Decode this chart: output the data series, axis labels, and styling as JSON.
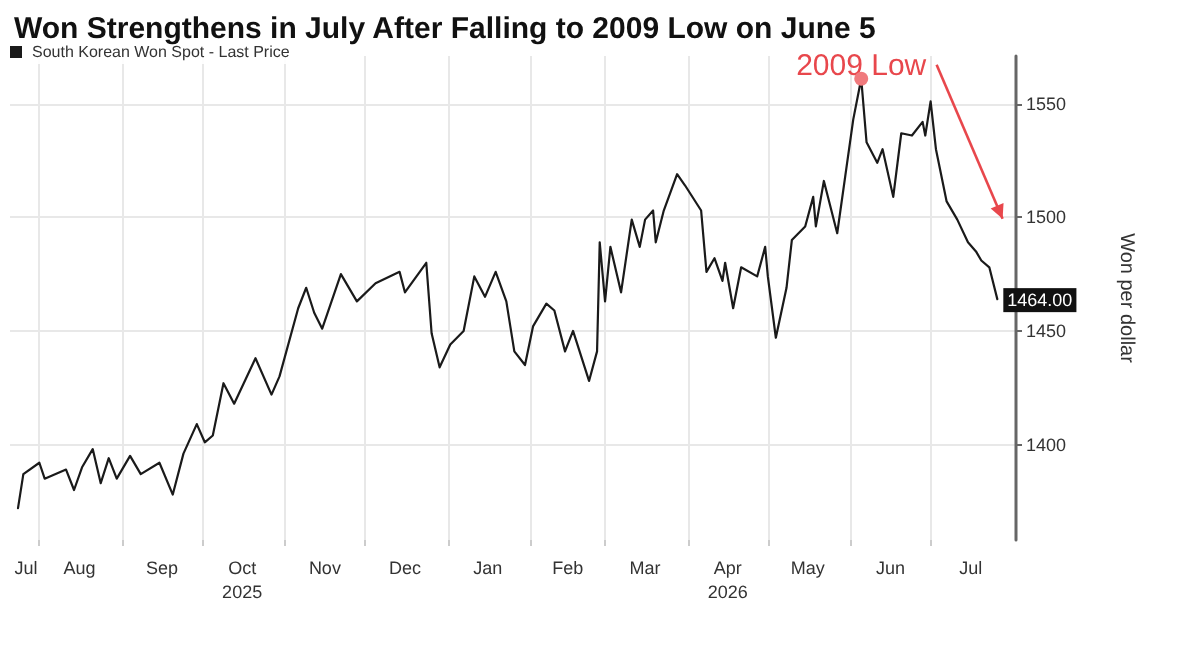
{
  "chart_data": {
    "type": "line",
    "title": "Won Strengthens in July After Falling to 2009 Low on June 5",
    "ylabel": "Won per dollar",
    "legend": "top left",
    "grid": true,
    "marker": "none",
    "line_style": "solid",
    "xlim": [
      "2025-07-21",
      "2026-08-02"
    ],
    "xticks": [
      {
        "value": "2025-07-27",
        "label": "Jul"
      },
      {
        "value": "2025-08-01",
        "label": null
      },
      {
        "value": "2025-08-16",
        "label": "Aug"
      },
      {
        "value": "2025-09-01",
        "label": null
      },
      {
        "value": "2025-09-16",
        "label": "Sep"
      },
      {
        "value": "2025-10-01",
        "label": null
      },
      {
        "value": "2025-10-16",
        "label": "Oct\n2025"
      },
      {
        "value": "2025-11-01",
        "label": null
      },
      {
        "value": "2025-11-16",
        "label": "Nov"
      },
      {
        "value": "2025-12-01",
        "label": null
      },
      {
        "value": "2025-12-16",
        "label": "Dec"
      },
      {
        "value": "2026-01-01",
        "label": null
      },
      {
        "value": "2026-01-16",
        "label": "Jan"
      },
      {
        "value": "2026-02-01",
        "label": null
      },
      {
        "value": "2026-02-15",
        "label": "Feb"
      },
      {
        "value": "2026-03-01",
        "label": null
      },
      {
        "value": "2026-03-16",
        "label": "Mar"
      },
      {
        "value": "2026-04-01",
        "label": null
      },
      {
        "value": "2026-04-16",
        "label": "Apr\n2026"
      },
      {
        "value": "2026-05-01",
        "label": null
      },
      {
        "value": "2026-05-16",
        "label": "May"
      },
      {
        "value": "2026-06-01",
        "label": null
      },
      {
        "value": "2026-06-16",
        "label": "Jun"
      },
      {
        "value": "2026-07-01",
        "label": null
      },
      {
        "value": "2026-07-16",
        "label": "Jul"
      }
    ],
    "ylim": [
      1358,
      1571
    ],
    "yticks": [
      1400,
      1450,
      1500,
      1550
    ],
    "annotations": [
      {
        "text": "2009 Low",
        "x": "2026-06-05",
        "y": 1561
      },
      {
        "text": "1464.00",
        "x": "2026-07-26",
        "y": 1464
      }
    ],
    "x": [
      "2025-07-24",
      "2025-07-26",
      "2025-08-01",
      "2025-08-03",
      "2025-08-11",
      "2025-08-14",
      "2025-08-17",
      "2025-08-21",
      "2025-08-24",
      "2025-08-27",
      "2025-08-30",
      "2025-09-04",
      "2025-09-08",
      "2025-09-15",
      "2025-09-20",
      "2025-09-24",
      "2025-09-29",
      "2025-10-02",
      "2025-10-05",
      "2025-10-09",
      "2025-10-13",
      "2025-10-21",
      "2025-10-27",
      "2025-10-30",
      "2025-11-06",
      "2025-11-09",
      "2025-11-12",
      "2025-11-15",
      "2025-11-22",
      "2025-11-28",
      "2025-12-05",
      "2025-12-14",
      "2025-12-16",
      "2025-12-24",
      "2025-12-26",
      "2025-12-29",
      "2026-01-02",
      "2026-01-07",
      "2026-01-11",
      "2026-01-15",
      "2026-01-19",
      "2026-01-23",
      "2026-01-26",
      "2026-01-30",
      "2026-02-02",
      "2026-02-07",
      "2026-02-10",
      "2026-02-14",
      "2026-02-17",
      "2026-02-23",
      "2026-02-26",
      "2026-02-27",
      "2026-03-01",
      "2026-03-03",
      "2026-03-07",
      "2026-03-11",
      "2026-03-14",
      "2026-03-16",
      "2026-03-19",
      "2026-03-20",
      "2026-03-23",
      "2026-03-28",
      "2026-03-31",
      "2026-04-06",
      "2026-04-08",
      "2026-04-11",
      "2026-04-14",
      "2026-04-15",
      "2026-04-18",
      "2026-04-21",
      "2026-04-27",
      "2026-04-30",
      "2026-05-01",
      "2026-05-04",
      "2026-05-08",
      "2026-05-10",
      "2026-05-15",
      "2026-05-18",
      "2026-05-19",
      "2026-05-22",
      "2026-05-27",
      "2026-05-30",
      "2026-06-02",
      "2026-06-05",
      "2026-06-07",
      "2026-06-11",
      "2026-06-13",
      "2026-06-17",
      "2026-06-20",
      "2026-06-24",
      "2026-06-28",
      "2026-06-29",
      "2026-07-01",
      "2026-07-03",
      "2026-07-07",
      "2026-07-11",
      "2026-07-15",
      "2026-07-18",
      "2026-07-20",
      "2026-07-23",
      "2026-07-26"
    ],
    "series": [
      {
        "name": "South Korean Won Spot - Last Price",
        "color": "#1a1a1a",
        "values": [
          1372,
          1387,
          1392,
          1385,
          1389,
          1380,
          1390,
          1398,
          1383,
          1394,
          1385,
          1395,
          1387,
          1392,
          1378,
          1396,
          1409,
          1401,
          1404,
          1427,
          1418,
          1438,
          1422,
          1430,
          1460,
          1469,
          1458,
          1451,
          1475,
          1463,
          1471,
          1476,
          1467,
          1480,
          1449,
          1434,
          1444,
          1450,
          1474,
          1465,
          1476,
          1463,
          1441,
          1435,
          1452,
          1462,
          1459,
          1441,
          1450,
          1428,
          1441,
          1489,
          1463,
          1487,
          1467,
          1499,
          1487,
          1499,
          1503,
          1489,
          1503,
          1519,
          1514,
          1503,
          1476,
          1482,
          1472,
          1480,
          1460,
          1478,
          1474,
          1487,
          1474,
          1447,
          1469,
          1490,
          1496,
          1509,
          1496,
          1516,
          1493,
          1518,
          1543,
          1561,
          1533,
          1524,
          1530,
          1509,
          1537,
          1536,
          1542,
          1536,
          1551,
          1530,
          1507,
          1499,
          1489,
          1485,
          1481,
          1478,
          1464
        ]
      }
    ]
  }
}
